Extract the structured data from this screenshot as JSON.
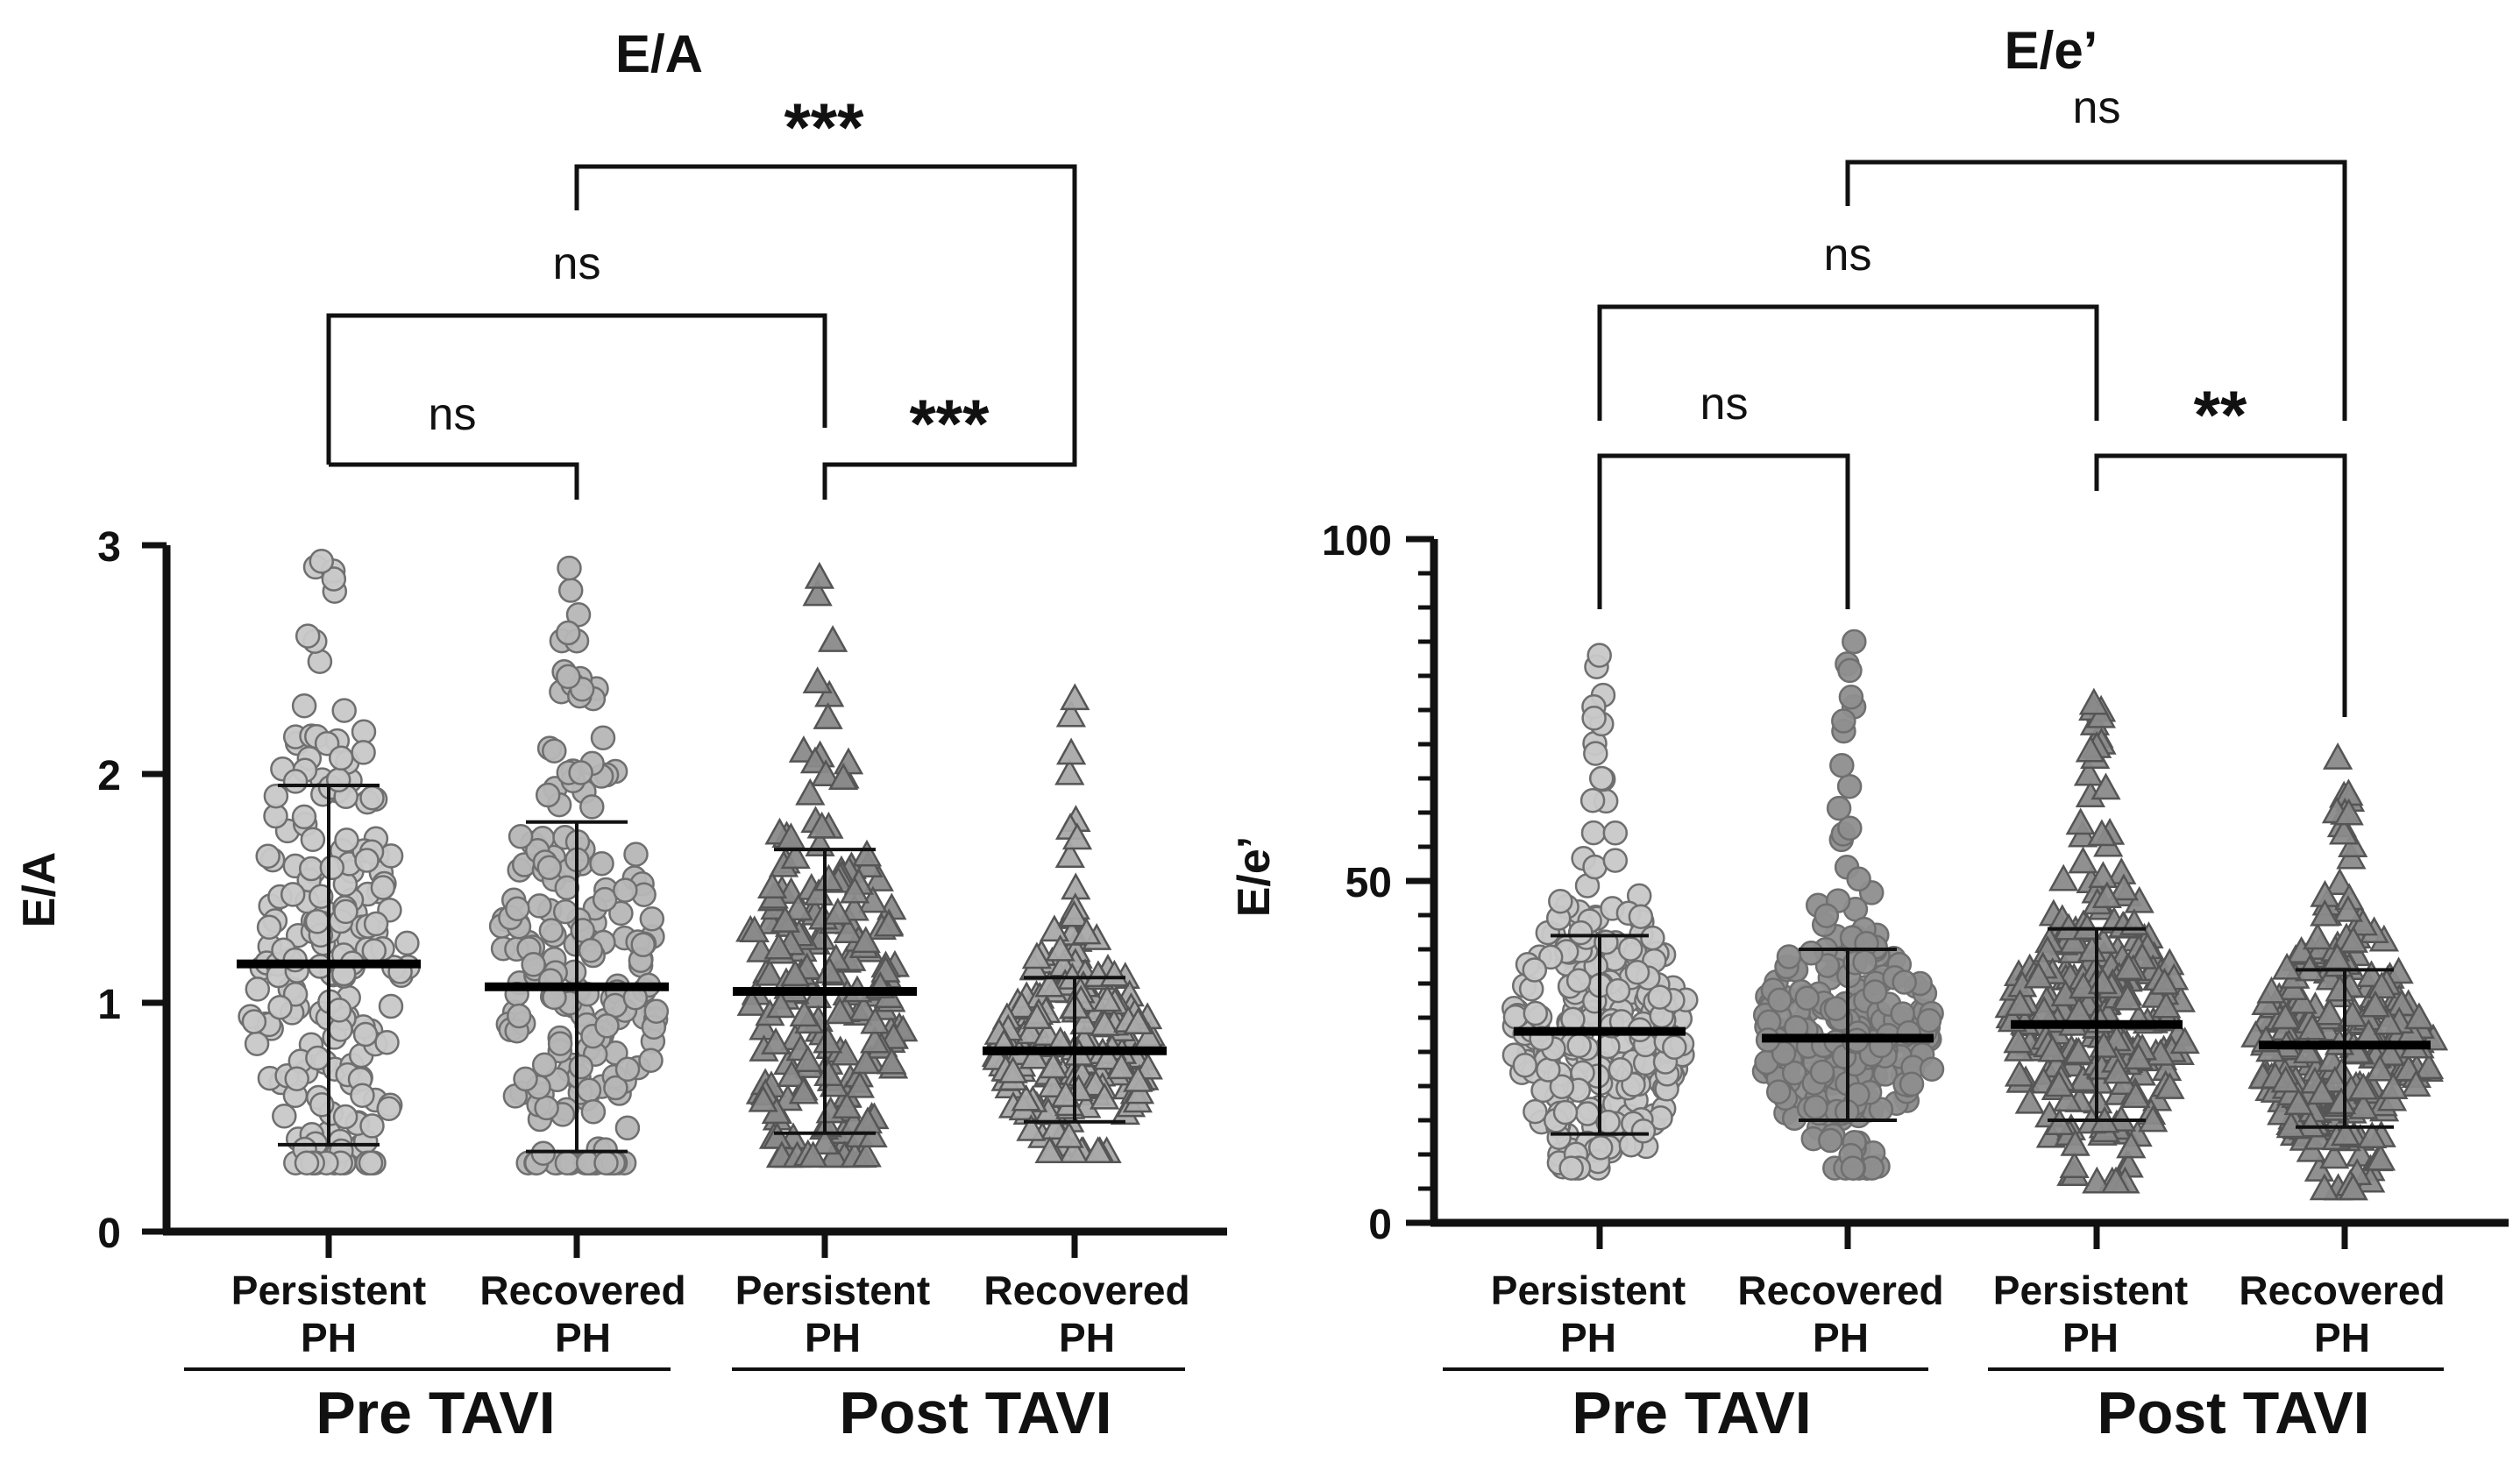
{
  "chart_data": [
    {
      "type": "scatter",
      "title": "E/A",
      "ylabel": "E/A",
      "xlabel": "",
      "ylim": [
        0,
        3
      ],
      "yticks": [
        "0",
        "1",
        "2",
        "3"
      ],
      "groups": [
        {
          "label_line1": "Persistent",
          "label_line2": "PH",
          "marker": "circle",
          "fill": "#c8c8c8",
          "mean": 1.17,
          "sd_low": 0.38,
          "sd_high": 1.95,
          "min": 0.3,
          "max": 2.93
        },
        {
          "label_line1": "Recovered",
          "label_line2": "PH",
          "marker": "circle",
          "fill": "#b6b6b6",
          "mean": 1.07,
          "sd_low": 0.35,
          "sd_high": 1.79,
          "min": 0.3,
          "max": 2.9
        },
        {
          "label_line1": "Persistent",
          "label_line2": "PH",
          "marker": "triangle",
          "fill": "#8a8a8a",
          "mean": 1.05,
          "sd_low": 0.43,
          "sd_high": 1.67,
          "min": 0.33,
          "max": 2.86
        },
        {
          "label_line1": "Recovered",
          "label_line2": "PH",
          "marker": "triangle",
          "fill": "#a9a9a9",
          "mean": 0.79,
          "sd_low": 0.48,
          "sd_high": 1.11,
          "min": 0.35,
          "max": 2.33
        }
      ],
      "group_labels": [
        {
          "text": "Pre TAVI"
        },
        {
          "text": "Post TAVI"
        }
      ],
      "significance": [
        {
          "text": "ns"
        },
        {
          "text": "ns"
        },
        {
          "text": "***"
        },
        {
          "text": "***"
        }
      ]
    },
    {
      "type": "scatter",
      "title": "E/e’",
      "ylabel": "E/e’",
      "xlabel": "",
      "ylim": [
        0,
        100
      ],
      "yticks": [
        "0",
        "50",
        "100"
      ],
      "groups": [
        {
          "label_line1": "Persistent",
          "label_line2": "PH",
          "marker": "circle",
          "fill": "#c8c8c8",
          "mean": 28,
          "sd_low": 13,
          "sd_high": 42,
          "min": 8,
          "max": 83
        },
        {
          "label_line1": "Recovered",
          "label_line2": "PH",
          "marker": "circle",
          "fill": "#8e8e8e",
          "mean": 27,
          "sd_low": 15,
          "sd_high": 40,
          "min": 8,
          "max": 85
        },
        {
          "label_line1": "Persistent",
          "label_line2": "PH",
          "marker": "triangle",
          "fill": "#8a8a8a",
          "mean": 29,
          "sd_low": 15,
          "sd_high": 43,
          "min": 6,
          "max": 76
        },
        {
          "label_line1": "Recovered",
          "label_line2": "PH",
          "marker": "triangle",
          "fill": "#8a8a8a",
          "mean": 26,
          "sd_low": 14,
          "sd_high": 37,
          "min": 5,
          "max": 68
        }
      ],
      "group_labels": [
        {
          "text": "Pre TAVI"
        },
        {
          "text": "Post TAVI"
        }
      ],
      "significance": [
        {
          "text": "ns"
        },
        {
          "text": "ns"
        },
        {
          "text": "**"
        },
        {
          "text": "ns"
        }
      ]
    }
  ]
}
